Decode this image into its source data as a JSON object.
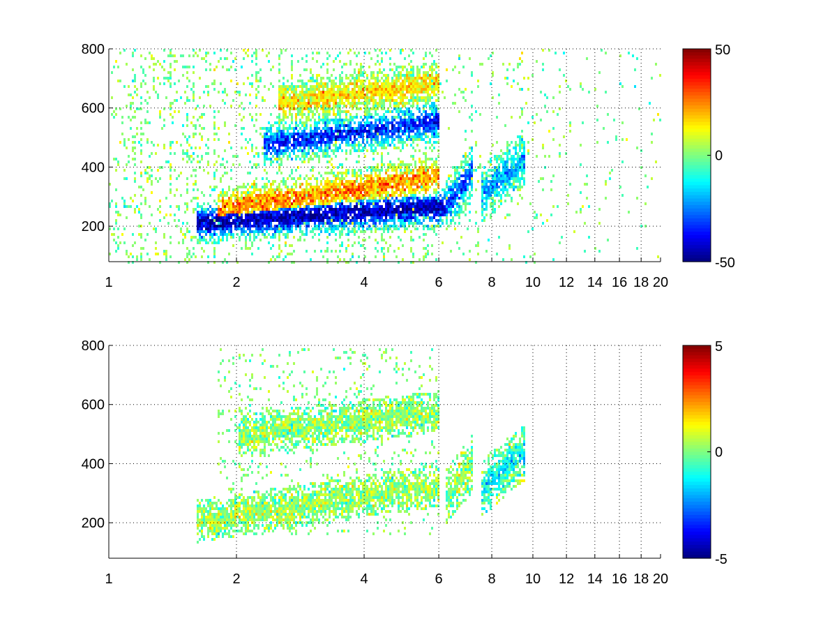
{
  "chart_data": [
    {
      "type": "heatmap",
      "title": "",
      "xlabel": "",
      "ylabel": "",
      "xlim": [
        1,
        20
      ],
      "ylim": [
        80,
        800
      ],
      "x_scale": "log",
      "x_ticks": [
        1,
        2,
        4,
        6,
        8,
        10,
        12,
        14,
        16,
        18,
        20
      ],
      "y_ticks": [
        200,
        400,
        600,
        800
      ],
      "grid": true,
      "colormap": "jet",
      "colorbar": {
        "min": -50,
        "max": 50,
        "ticks": [
          -50,
          0,
          50
        ]
      },
      "features": [
        {
          "band": "lower",
          "x_range": [
            1.6,
            6.2
          ],
          "y_start": 215,
          "y_end": 270,
          "value": -45
        },
        {
          "band": "lower-upper",
          "x_range": [
            1.8,
            6.0
          ],
          "y_start": 260,
          "y_end": 370,
          "value": 25
        },
        {
          "band": "middle",
          "x_range": [
            2.3,
            6.0
          ],
          "y_start": 480,
          "y_end": 560,
          "value": -35
        },
        {
          "band": "upper",
          "x_range": [
            2.5,
            6.0
          ],
          "y_start": 620,
          "y_end": 690,
          "value": 15
        },
        {
          "band": "blob-6-7",
          "x_range": [
            6.2,
            7.2
          ],
          "y_center": 330,
          "value": -30
        },
        {
          "band": "blob-7.5-9.5",
          "x_range": [
            7.5,
            9.5
          ],
          "y_center": 370,
          "value": -20
        }
      ]
    },
    {
      "type": "heatmap",
      "title": "",
      "xlabel": "",
      "ylabel": "",
      "xlim": [
        1,
        20
      ],
      "ylim": [
        80,
        800
      ],
      "x_scale": "log",
      "x_ticks": [
        1,
        2,
        4,
        6,
        8,
        10,
        12,
        14,
        16,
        18,
        20
      ],
      "y_ticks": [
        200,
        400,
        600,
        800
      ],
      "grid": true,
      "colormap": "jet",
      "colorbar": {
        "min": -5,
        "max": 5,
        "ticks": [
          -5,
          0,
          5
        ]
      },
      "features": [
        {
          "band": "lower",
          "x_range": [
            1.6,
            6.0
          ],
          "y_start": 210,
          "y_end": 330,
          "value": 0.3
        },
        {
          "band": "middle",
          "x_range": [
            2.0,
            6.0
          ],
          "y_start": 500,
          "y_end": 580,
          "value": 0.2
        },
        {
          "band": "blob-6-7",
          "x_range": [
            6.2,
            7.2
          ],
          "y_center": 350,
          "value": 0.2
        },
        {
          "band": "blob-7.5-9.5",
          "x_range": [
            7.5,
            9.5
          ],
          "y_center": 380,
          "value": -1.2
        }
      ]
    }
  ]
}
